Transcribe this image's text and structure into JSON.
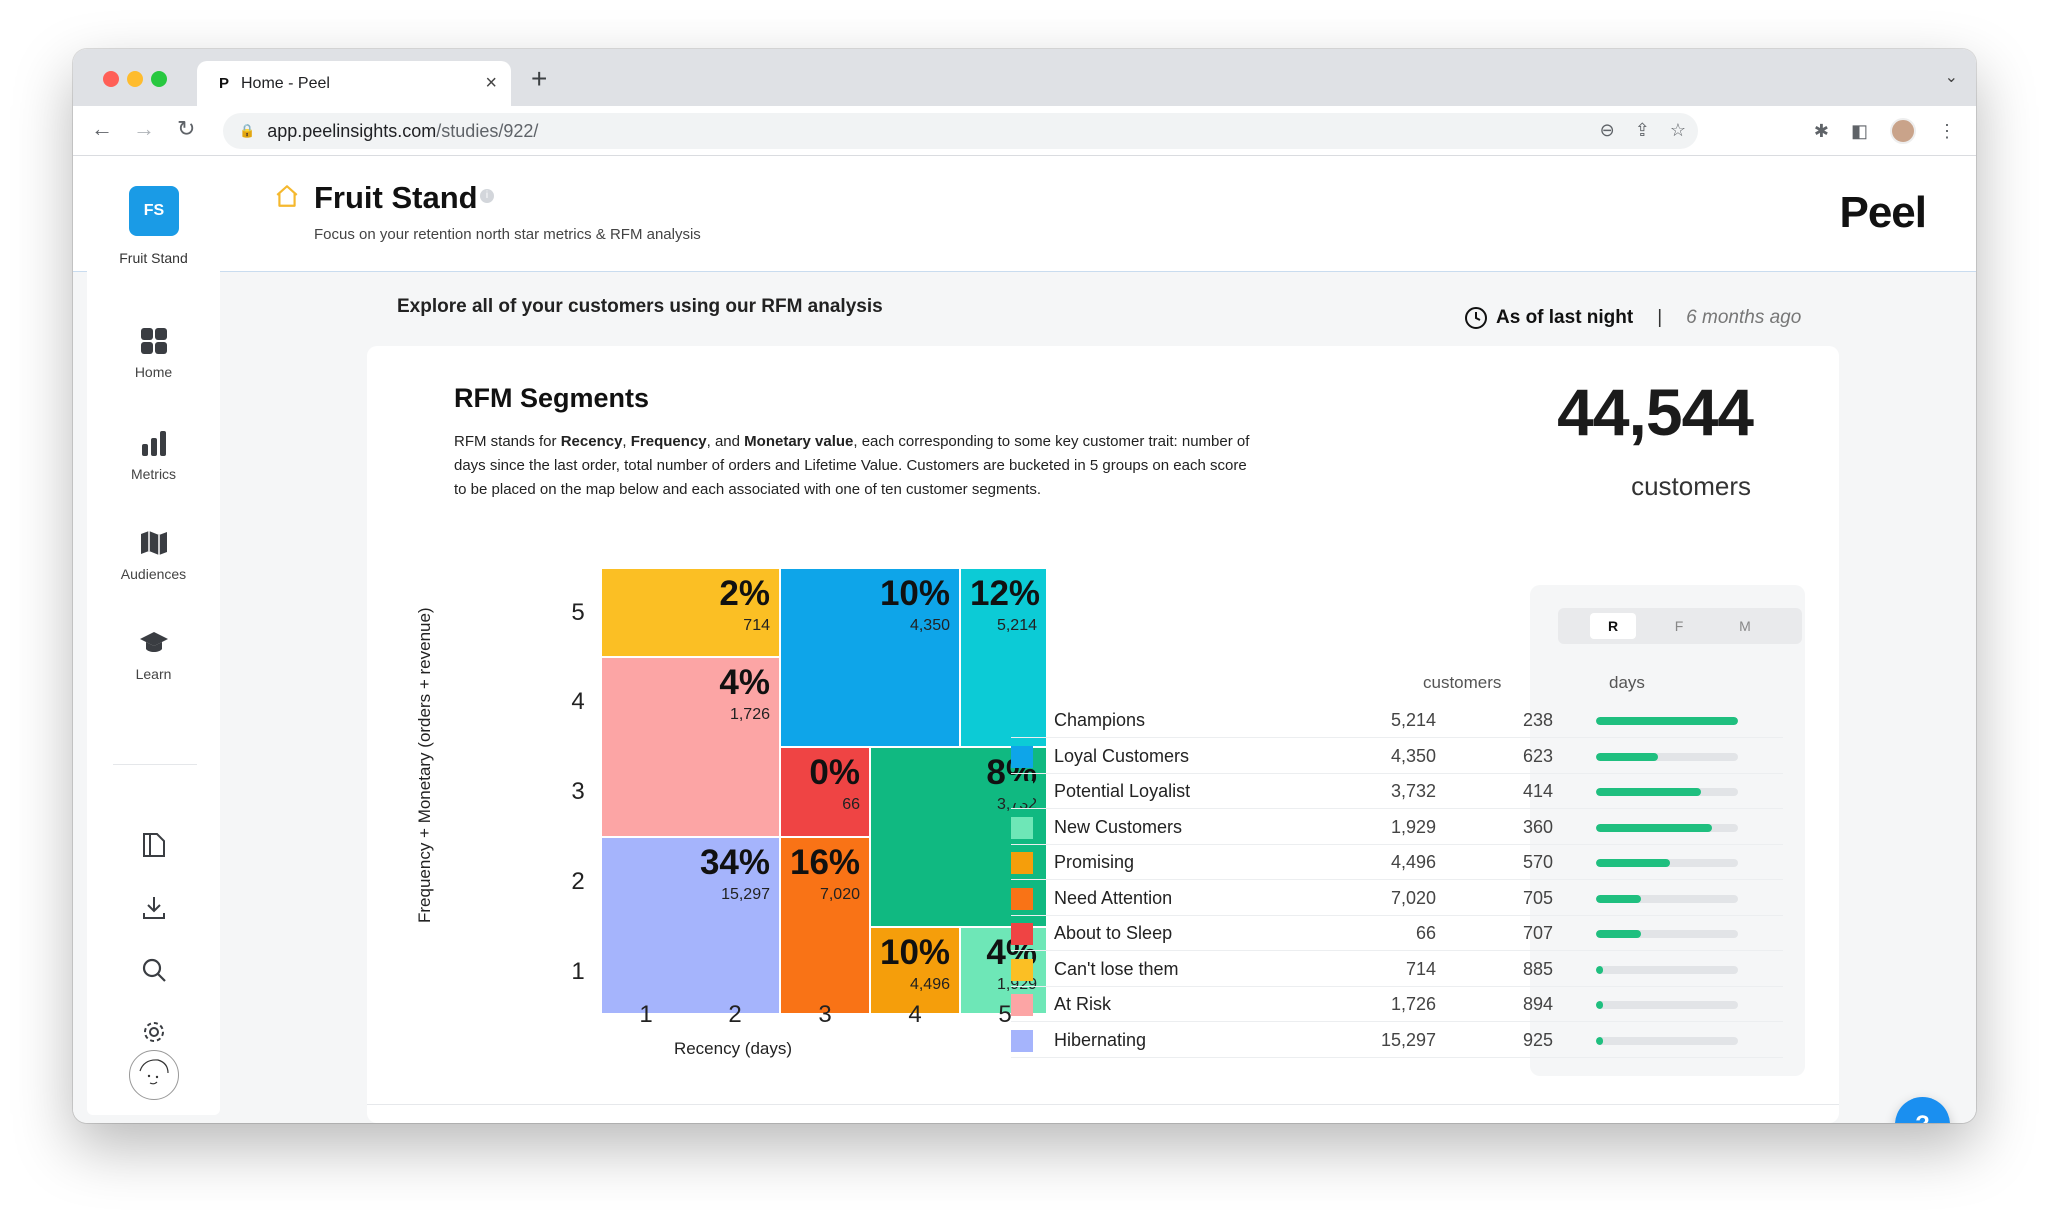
{
  "browser": {
    "tab_title": "Home - Peel",
    "tab_favicon": "P",
    "url_host": "app.peelinsights.com",
    "url_path": "/studies/922/"
  },
  "sidebar": {
    "org_initials": "FS",
    "org_name": "Fruit Stand",
    "items": [
      {
        "label": "Home",
        "icon": "home-grid-icon"
      },
      {
        "label": "Metrics",
        "icon": "bar-chart-icon"
      },
      {
        "label": "Audiences",
        "icon": "map-icon"
      },
      {
        "label": "Learn",
        "icon": "graduation-cap-icon"
      }
    ],
    "tools": [
      "book-icon",
      "download-icon",
      "search-icon",
      "gear-icon"
    ]
  },
  "header": {
    "title": "Fruit Stand",
    "subtitle": "Focus on your retention north star metrics & RFM analysis",
    "brand": "Peel"
  },
  "section": {
    "heading": "Explore all of your customers using our RFM analysis",
    "as_of": "As of last night",
    "as_of_ago": "6 months ago"
  },
  "rfm": {
    "title": "RFM Segments",
    "desc": {
      "p1": "RFM stands for ",
      "b1": "Recency",
      "p2": ", ",
      "b2": "Frequency",
      "p3": ", and ",
      "b3": "Monetary value",
      "p4": ", each corresponding to some key customer trait: number of days since the last order, total number of orders and Lifetime Value. Customers are bucketed in 5 groups on each score to be placed on the map below and each associated with one of ten customer segments."
    },
    "total": "44,544",
    "total_label": "customers"
  },
  "chart_data": {
    "type": "heatmap",
    "xlabel": "Recency (days)",
    "ylabel": "Frequency + Monetary (orders + revenue)",
    "x_ticks": [
      "1",
      "2",
      "3",
      "4",
      "5"
    ],
    "y_ticks": [
      "5",
      "4",
      "3",
      "2",
      "1"
    ],
    "cells": [
      {
        "segment": "Can't lose them",
        "pct": "2%",
        "count": "714",
        "color": "#fbbf24"
      },
      {
        "segment": "Loyal Customers",
        "pct": "10%",
        "count": "4,350",
        "color": "#0ea5e9"
      },
      {
        "segment": "Champions",
        "pct": "12%",
        "count": "5,214",
        "color": "#0ccbd6"
      },
      {
        "segment": "At Risk",
        "pct": "4%",
        "count": "1,726",
        "color": "#fca5a5"
      },
      {
        "segment": "About to Sleep",
        "pct": "0%",
        "count": "66",
        "color": "#ef4444"
      },
      {
        "segment": "Potential Loyalist",
        "pct": "8%",
        "count": "3,732",
        "color": "#10b981"
      },
      {
        "segment": "Hibernating",
        "pct": "34%",
        "count": "15,297",
        "color": "#a5b4fc"
      },
      {
        "segment": "Need Attention",
        "pct": "16%",
        "count": "7,020",
        "color": "#f97316"
      },
      {
        "segment": "Promising",
        "pct": "10%",
        "count": "4,496",
        "color": "#f59e0b"
      },
      {
        "segment": "New Customers",
        "pct": "4%",
        "count": "1,929",
        "color": "#6ee7b7"
      }
    ]
  },
  "legend": {
    "toggle": [
      "R",
      "F",
      "M"
    ],
    "toggle_active": "R",
    "col_customers": "customers",
    "col_days": "days",
    "rows": [
      {
        "name": "Champions",
        "customers": "5,214",
        "days": "238",
        "color": "#0ccbd6",
        "bar": 1.0
      },
      {
        "name": "Loyal Customers",
        "customers": "4,350",
        "days": "623",
        "color": "#0ea5e9",
        "bar": 0.44
      },
      {
        "name": "Potential Loyalist",
        "customers": "3,732",
        "days": "414",
        "color": "#10b981",
        "bar": 0.74
      },
      {
        "name": "New Customers",
        "customers": "1,929",
        "days": "360",
        "color": "#6ee7b7",
        "bar": 0.82
      },
      {
        "name": "Promising",
        "customers": "4,496",
        "days": "570",
        "color": "#f59e0b",
        "bar": 0.52
      },
      {
        "name": "Need Attention",
        "customers": "7,020",
        "days": "705",
        "color": "#f97316",
        "bar": 0.32
      },
      {
        "name": "About to Sleep",
        "customers": "66",
        "days": "707",
        "color": "#ef4444",
        "bar": 0.32
      },
      {
        "name": "Can't lose them",
        "customers": "714",
        "days": "885",
        "color": "#fbbf24",
        "bar": 0.05
      },
      {
        "name": "At Risk",
        "customers": "1,726",
        "days": "894",
        "color": "#fca5a5",
        "bar": 0.05
      },
      {
        "name": "Hibernating",
        "customers": "15,297",
        "days": "925",
        "color": "#a5b4fc",
        "bar": 0.05
      }
    ]
  },
  "help_label": "?"
}
